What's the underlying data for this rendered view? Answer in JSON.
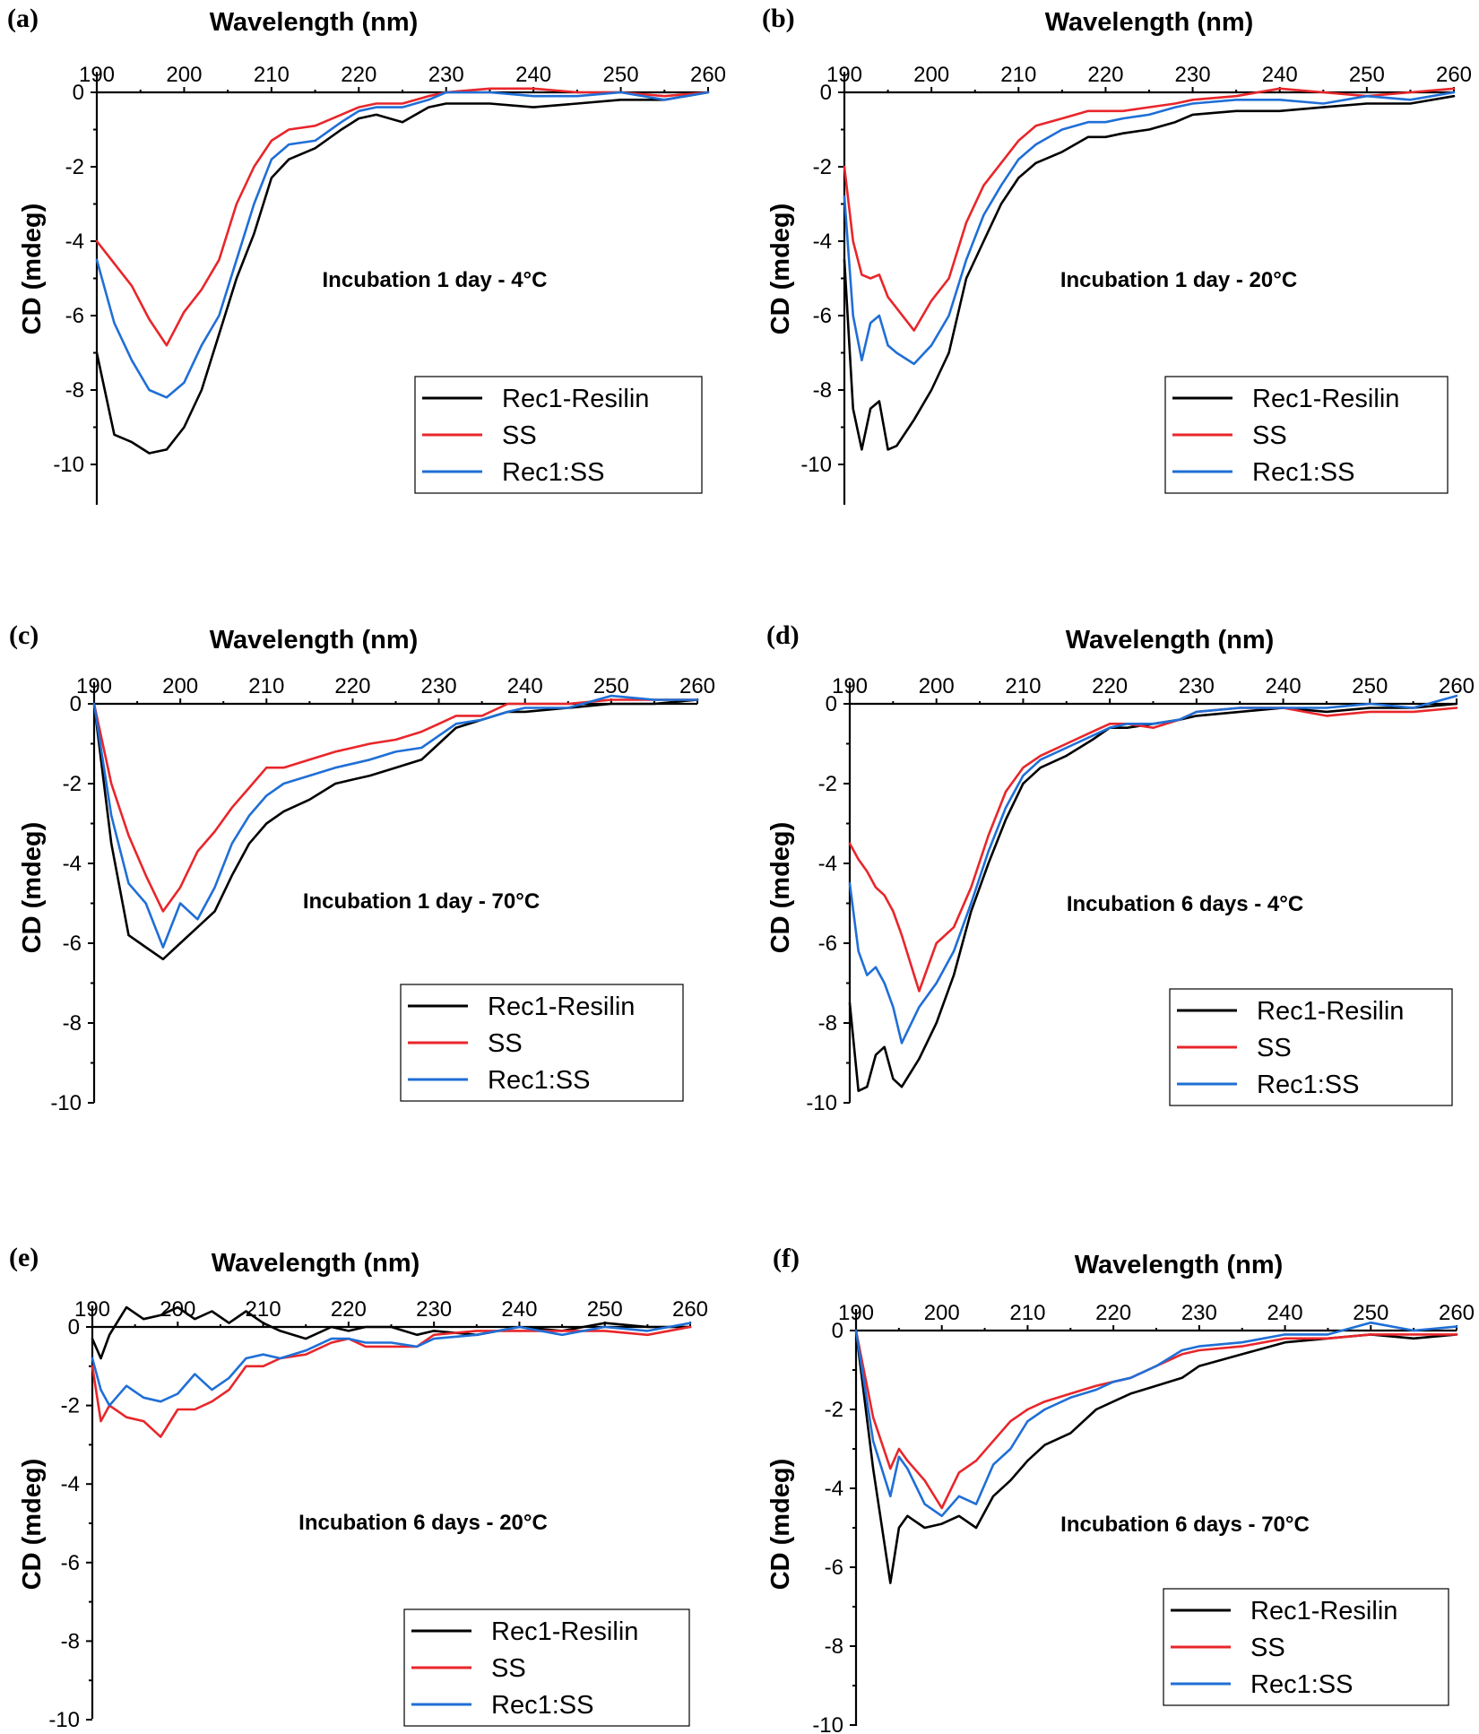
{
  "colors": {
    "rec1_resilin": "#000000",
    "ss": "#e8262b",
    "rec1_ss": "#1f6fd6"
  },
  "chart_data": [
    {
      "panel": "(a)",
      "type": "line",
      "xlabel": "Wavelength (nm)",
      "ylabel": "CD (mdeg)",
      "annotation": "Incubation 1 day - 4°C",
      "xlim": [
        190,
        260
      ],
      "ylim": [
        -11,
        0.5
      ],
      "xticks": [
        190,
        200,
        210,
        220,
        230,
        240,
        250,
        260
      ],
      "yticks": [
        0,
        -2,
        -4,
        -6,
        -8,
        -10
      ],
      "legend_position": "bottom-right",
      "x": [
        190,
        192,
        194,
        196,
        198,
        200,
        202,
        204,
        206,
        208,
        210,
        212,
        215,
        218,
        220,
        222,
        225,
        228,
        230,
        235,
        240,
        245,
        250,
        255,
        260
      ],
      "series": [
        {
          "name": "Rec1-Resilin",
          "color": "#000000",
          "values": [
            -7,
            -9.2,
            -9.4,
            -9.7,
            -9.6,
            -9.0,
            -8.0,
            -6.5,
            -5.0,
            -3.8,
            -2.3,
            -1.8,
            -1.5,
            -1.0,
            -0.7,
            -0.6,
            -0.8,
            -0.4,
            -0.3,
            -0.3,
            -0.4,
            -0.3,
            -0.2,
            -0.2,
            0.0
          ]
        },
        {
          "name": "SS",
          "color": "#e8262b",
          "values": [
            -4.0,
            -4.6,
            -5.2,
            -6.1,
            -6.8,
            -5.9,
            -5.3,
            -4.5,
            -3.0,
            -2.0,
            -1.3,
            -1.0,
            -0.9,
            -0.6,
            -0.4,
            -0.3,
            -0.3,
            -0.1,
            0.0,
            0.1,
            0.1,
            0.0,
            0.0,
            -0.1,
            0.0
          ]
        },
        {
          "name": "Rec1:SS",
          "color": "#1f6fd6",
          "values": [
            -4.5,
            -6.2,
            -7.2,
            -8.0,
            -8.2,
            -7.8,
            -6.8,
            -6.0,
            -4.5,
            -3.0,
            -1.8,
            -1.4,
            -1.3,
            -0.8,
            -0.5,
            -0.4,
            -0.4,
            -0.2,
            0.0,
            0.0,
            -0.1,
            -0.1,
            0.0,
            -0.2,
            0.0
          ]
        }
      ]
    },
    {
      "panel": "(b)",
      "type": "line",
      "xlabel": "Wavelength (nm)",
      "ylabel": "CD (mdeg)",
      "annotation": "Incubation 1 day - 20°C",
      "xlim": [
        190,
        260
      ],
      "ylim": [
        -11,
        0.5
      ],
      "xticks": [
        190,
        200,
        210,
        220,
        230,
        240,
        250,
        260
      ],
      "yticks": [
        0,
        -2,
        -4,
        -6,
        -8,
        -10
      ],
      "legend_position": "bottom-right",
      "x": [
        190,
        191,
        192,
        193,
        194,
        195,
        196,
        198,
        200,
        202,
        204,
        206,
        208,
        210,
        212,
        215,
        218,
        220,
        222,
        225,
        228,
        230,
        235,
        240,
        245,
        250,
        255,
        260
      ],
      "series": [
        {
          "name": "Rec1-Resilin",
          "color": "#000000",
          "values": [
            -4.5,
            -8.5,
            -9.6,
            -8.5,
            -8.3,
            -9.6,
            -9.5,
            -8.8,
            -8.0,
            -7.0,
            -5.0,
            -4.0,
            -3.0,
            -2.3,
            -1.9,
            -1.6,
            -1.2,
            -1.2,
            -1.1,
            -1.0,
            -0.8,
            -0.6,
            -0.5,
            -0.5,
            -0.4,
            -0.3,
            -0.3,
            -0.1
          ]
        },
        {
          "name": "SS",
          "color": "#e8262b",
          "values": [
            -2.0,
            -4.0,
            -4.9,
            -5.0,
            -4.9,
            -5.5,
            -5.8,
            -6.4,
            -5.6,
            -5.0,
            -3.5,
            -2.5,
            -1.9,
            -1.3,
            -0.9,
            -0.7,
            -0.5,
            -0.5,
            -0.5,
            -0.4,
            -0.3,
            -0.2,
            -0.1,
            0.1,
            0.0,
            -0.1,
            0.0,
            0.1
          ]
        },
        {
          "name": "Rec1:SS",
          "color": "#1f6fd6",
          "values": [
            -2.8,
            -6.0,
            -7.2,
            -6.2,
            -6.0,
            -6.8,
            -7.0,
            -7.3,
            -6.8,
            -6.0,
            -4.5,
            -3.3,
            -2.5,
            -1.8,
            -1.4,
            -1.0,
            -0.8,
            -0.8,
            -0.7,
            -0.6,
            -0.4,
            -0.3,
            -0.2,
            -0.2,
            -0.3,
            -0.1,
            -0.2,
            0.0
          ]
        }
      ]
    },
    {
      "panel": "(c)",
      "type": "line",
      "xlabel": "Wavelength (nm)",
      "ylabel": "CD (mdeg)",
      "annotation": "Incubation 1 day - 70°C",
      "xlim": [
        190,
        260
      ],
      "ylim": [
        -10,
        0.5
      ],
      "xticks": [
        190,
        200,
        210,
        220,
        230,
        240,
        250,
        260
      ],
      "yticks": [
        0,
        -2,
        -4,
        -6,
        -8,
        -10
      ],
      "legend_position": "bottom-right",
      "x": [
        190,
        192,
        194,
        196,
        198,
        200,
        202,
        204,
        206,
        208,
        210,
        212,
        215,
        218,
        220,
        222,
        225,
        228,
        230,
        232,
        235,
        238,
        240,
        245,
        250,
        255,
        260
      ],
      "series": [
        {
          "name": "Rec1-Resilin",
          "color": "#000000",
          "values": [
            0,
            -3.5,
            -5.8,
            -6.1,
            -6.4,
            -6.0,
            -5.6,
            -5.2,
            -4.3,
            -3.5,
            -3.0,
            -2.7,
            -2.4,
            -2.0,
            -1.9,
            -1.8,
            -1.6,
            -1.4,
            -1.0,
            -0.6,
            -0.4,
            -0.2,
            -0.2,
            -0.1,
            0.0,
            0.0,
            0.1
          ]
        },
        {
          "name": "SS",
          "color": "#e8262b",
          "values": [
            0,
            -2.0,
            -3.3,
            -4.3,
            -5.2,
            -4.6,
            -3.7,
            -3.2,
            -2.6,
            -2.1,
            -1.6,
            -1.6,
            -1.4,
            -1.2,
            -1.1,
            -1.0,
            -0.9,
            -0.7,
            -0.5,
            -0.3,
            -0.3,
            0.0,
            0.0,
            0.0,
            0.1,
            0.1,
            0.1
          ]
        },
        {
          "name": "Rec1:SS",
          "color": "#1f6fd6",
          "values": [
            0,
            -2.8,
            -4.5,
            -5.0,
            -6.1,
            -5.0,
            -5.4,
            -4.6,
            -3.5,
            -2.8,
            -2.3,
            -2.0,
            -1.8,
            -1.6,
            -1.5,
            -1.4,
            -1.2,
            -1.1,
            -0.8,
            -0.5,
            -0.4,
            -0.2,
            -0.1,
            -0.1,
            0.2,
            0.1,
            0.1
          ]
        }
      ]
    },
    {
      "panel": "(d)",
      "type": "line",
      "xlabel": "Wavelength (nm)",
      "ylabel": "CD (mdeg)",
      "annotation": "Incubation 6 days - 4°C",
      "xlim": [
        190,
        260
      ],
      "ylim": [
        -10,
        0.5
      ],
      "xticks": [
        190,
        200,
        210,
        220,
        230,
        240,
        250,
        260
      ],
      "yticks": [
        0,
        -2,
        -4,
        -6,
        -8,
        -10
      ],
      "legend_position": "bottom-right",
      "x": [
        190,
        191,
        192,
        193,
        194,
        195,
        196,
        198,
        200,
        202,
        204,
        206,
        208,
        210,
        212,
        215,
        218,
        220,
        222,
        225,
        228,
        230,
        235,
        240,
        245,
        250,
        255,
        260
      ],
      "series": [
        {
          "name": "Rec1-Resilin",
          "color": "#000000",
          "values": [
            -7.5,
            -9.7,
            -9.6,
            -8.8,
            -8.6,
            -9.4,
            -9.6,
            -8.9,
            -8.0,
            -6.8,
            -5.2,
            -4.0,
            -2.9,
            -2.0,
            -1.6,
            -1.3,
            -0.9,
            -0.6,
            -0.6,
            -0.5,
            -0.4,
            -0.3,
            -0.2,
            -0.1,
            -0.2,
            -0.1,
            -0.1,
            0.0
          ]
        },
        {
          "name": "SS",
          "color": "#e8262b",
          "values": [
            -3.5,
            -3.9,
            -4.2,
            -4.6,
            -4.8,
            -5.2,
            -5.8,
            -7.2,
            -6.0,
            -5.6,
            -4.6,
            -3.3,
            -2.2,
            -1.6,
            -1.3,
            -1.0,
            -0.7,
            -0.5,
            -0.5,
            -0.6,
            -0.4,
            -0.2,
            -0.1,
            -0.1,
            -0.3,
            -0.2,
            -0.2,
            -0.1
          ]
        },
        {
          "name": "Rec1:SS",
          "color": "#1f6fd6",
          "values": [
            -4.5,
            -6.2,
            -6.8,
            -6.6,
            -7.0,
            -7.6,
            -8.5,
            -7.6,
            -7.0,
            -6.2,
            -5.0,
            -3.7,
            -2.6,
            -1.8,
            -1.4,
            -1.1,
            -0.8,
            -0.6,
            -0.5,
            -0.5,
            -0.4,
            -0.2,
            -0.1,
            -0.1,
            -0.1,
            0.0,
            -0.1,
            0.2
          ]
        }
      ]
    },
    {
      "panel": "(e)",
      "type": "line",
      "xlabel": "Wavelength (nm)",
      "ylabel": "CD (mdeg)",
      "annotation": "Incubation 6 days - 20°C",
      "xlim": [
        190,
        260
      ],
      "ylim": [
        -10,
        0.5
      ],
      "xticks": [
        190,
        200,
        210,
        220,
        230,
        240,
        250,
        260
      ],
      "yticks": [
        0,
        -2,
        -4,
        -6,
        -8,
        -10
      ],
      "legend_position": "bottom-right",
      "x": [
        190,
        191,
        192,
        194,
        196,
        198,
        200,
        202,
        204,
        206,
        208,
        210,
        212,
        215,
        218,
        220,
        222,
        225,
        228,
        230,
        235,
        240,
        245,
        250,
        255,
        260
      ],
      "series": [
        {
          "name": "Rec1-Resilin",
          "color": "#000000",
          "values": [
            -0.3,
            -0.8,
            -0.2,
            0.5,
            0.2,
            0.3,
            0.5,
            0.2,
            0.4,
            0.1,
            0.4,
            0.1,
            -0.1,
            -0.3,
            0.0,
            -0.1,
            0.0,
            0.0,
            -0.2,
            -0.1,
            -0.2,
            0.0,
            -0.1,
            0.1,
            0.0,
            0.0
          ]
        },
        {
          "name": "SS",
          "color": "#e8262b",
          "values": [
            -1.0,
            -2.4,
            -2.0,
            -2.3,
            -2.4,
            -2.8,
            -2.1,
            -2.1,
            -1.9,
            -1.6,
            -1.0,
            -1.0,
            -0.8,
            -0.7,
            -0.4,
            -0.3,
            -0.5,
            -0.5,
            -0.5,
            -0.2,
            -0.1,
            -0.1,
            -0.1,
            -0.1,
            -0.2,
            0.0
          ]
        },
        {
          "name": "Rec1:SS",
          "color": "#1f6fd6",
          "values": [
            -0.8,
            -1.6,
            -2.0,
            -1.5,
            -1.8,
            -1.9,
            -1.7,
            -1.2,
            -1.6,
            -1.3,
            -0.8,
            -0.7,
            -0.8,
            -0.6,
            -0.3,
            -0.3,
            -0.4,
            -0.4,
            -0.5,
            -0.3,
            -0.2,
            0.0,
            -0.2,
            0.0,
            -0.1,
            0.1
          ]
        }
      ]
    },
    {
      "panel": "(f)",
      "type": "line",
      "xlabel": "Wavelength (nm)",
      "ylabel": "CD (mdeg)",
      "annotation": "Incubation 6 days - 70°C",
      "xlim": [
        190,
        260
      ],
      "ylim": [
        -10,
        0.5
      ],
      "xticks": [
        190,
        200,
        210,
        220,
        230,
        240,
        250,
        260
      ],
      "yticks": [
        0,
        -2,
        -4,
        -6,
        -8,
        -10
      ],
      "legend_position": "bottom-right",
      "x": [
        190,
        192,
        194,
        195,
        196,
        198,
        200,
        202,
        204,
        206,
        208,
        210,
        212,
        215,
        218,
        220,
        222,
        225,
        228,
        230,
        235,
        240,
        245,
        250,
        255,
        260
      ],
      "series": [
        {
          "name": "Rec1-Resilin",
          "color": "#000000",
          "values": [
            0,
            -3.5,
            -6.4,
            -5.0,
            -4.7,
            -5.0,
            -4.9,
            -4.7,
            -5.0,
            -4.2,
            -3.8,
            -3.3,
            -2.9,
            -2.6,
            -2.0,
            -1.8,
            -1.6,
            -1.4,
            -1.2,
            -0.9,
            -0.6,
            -0.3,
            -0.2,
            -0.1,
            -0.2,
            -0.1
          ]
        },
        {
          "name": "SS",
          "color": "#e8262b",
          "values": [
            0,
            -2.2,
            -3.5,
            -3.0,
            -3.3,
            -3.8,
            -4.5,
            -3.6,
            -3.3,
            -2.8,
            -2.3,
            -2.0,
            -1.8,
            -1.6,
            -1.4,
            -1.3,
            -1.2,
            -0.9,
            -0.6,
            -0.5,
            -0.4,
            -0.2,
            -0.2,
            -0.1,
            -0.1,
            -0.1
          ]
        },
        {
          "name": "Rec1:SS",
          "color": "#1f6fd6",
          "values": [
            0,
            -2.8,
            -4.2,
            -3.2,
            -3.5,
            -4.4,
            -4.7,
            -4.2,
            -4.4,
            -3.4,
            -3.0,
            -2.3,
            -2.0,
            -1.7,
            -1.5,
            -1.3,
            -1.2,
            -0.9,
            -0.5,
            -0.4,
            -0.3,
            -0.1,
            -0.1,
            0.2,
            0.0,
            0.1
          ]
        }
      ]
    }
  ]
}
